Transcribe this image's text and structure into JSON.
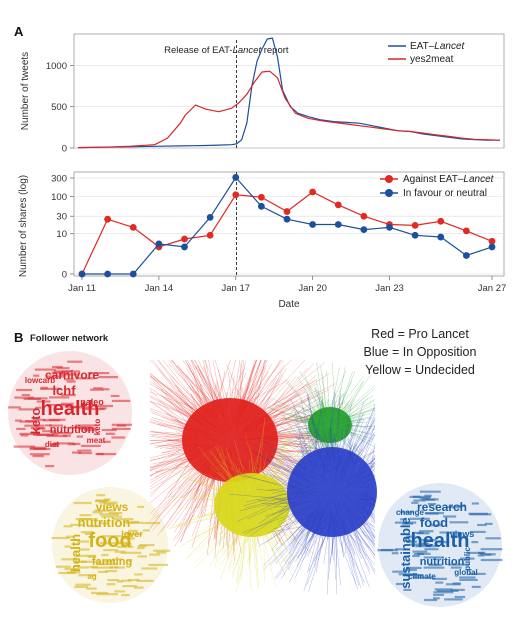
{
  "panel_a": {
    "letter": "A"
  },
  "panel_b": {
    "letter": "B",
    "subtitle": "Follower network",
    "color_key": [
      "Red = Pro Lancet",
      "Blue = In Opposition",
      "Yellow = Undecided"
    ],
    "clusters": [
      {
        "id": "red",
        "color": "#e0201b"
      },
      {
        "id": "green",
        "color": "#22a02a"
      },
      {
        "id": "yellow",
        "color": "#d8d81a"
      },
      {
        "id": "blue",
        "color": "#2a3fc8"
      }
    ],
    "clouds": {
      "red": {
        "color": "#d9262e",
        "words": [
          "health",
          "lchf",
          "carnivore",
          "keto",
          "nutrition",
          "paleo",
          "diet",
          "meat",
          "lowcarb",
          "keto"
        ]
      },
      "yellow": {
        "color": "#d4b317",
        "words": [
          "food",
          "nutrition",
          "views",
          "health",
          "farming",
          "lover",
          "ag"
        ]
      },
      "blue": {
        "color": "#1b5fa8",
        "words": [
          "health",
          "food",
          "research",
          "sustainable",
          "nutrition",
          "views",
          "climate",
          "global",
          "change",
          "public"
        ]
      }
    }
  },
  "chart_data": [
    {
      "type": "line",
      "panel": "A",
      "ylabel": "Number of tweets",
      "ylim": [
        0,
        1380
      ],
      "yticks": [
        0,
        500,
        1000
      ],
      "xlim": [
        0,
        16.5
      ],
      "annotation": {
        "text_pre": "Release of EAT-",
        "text_em": "Lancet",
        "text_post": " report",
        "x": 6.2
      },
      "legend": {
        "position": "top-right"
      },
      "series": [
        {
          "name_pre": "EAT–",
          "name_em": "Lancet",
          "color": "#1f4e9b",
          "x": [
            0,
            1,
            2,
            3,
            4,
            4.5,
            5,
            5.5,
            6,
            6.2,
            6.4,
            6.6,
            6.8,
            7,
            7.2,
            7.4,
            7.6,
            7.8,
            8,
            8.3,
            8.6,
            9,
            9.5,
            10,
            10.5,
            11,
            11.5,
            12,
            12.5,
            13,
            13.5,
            14,
            14.5,
            15,
            15.5,
            16,
            16.5
          ],
          "y": [
            5,
            10,
            15,
            20,
            25,
            28,
            30,
            35,
            40,
            50,
            100,
            300,
            750,
            1050,
            1200,
            1320,
            1330,
            1100,
            700,
            500,
            420,
            380,
            340,
            320,
            310,
            300,
            270,
            240,
            210,
            200,
            170,
            150,
            130,
            110,
            100,
            95,
            95
          ]
        },
        {
          "name": "yes2meat",
          "color": "#d6262b",
          "x": [
            0,
            1,
            2,
            3,
            3.5,
            4,
            4.2,
            4.6,
            5,
            5.5,
            6,
            6.3,
            6.6,
            6.9,
            7.2,
            7.5,
            7.8,
            8.1,
            8.5,
            9,
            9.5,
            10,
            10.5,
            11,
            11.5,
            12,
            12.5,
            13,
            13.5,
            14,
            14.5,
            15,
            15.5,
            16,
            16.5
          ],
          "y": [
            5,
            10,
            20,
            40,
            120,
            300,
            400,
            520,
            470,
            440,
            480,
            550,
            650,
            800,
            920,
            930,
            850,
            600,
            420,
            360,
            330,
            310,
            290,
            270,
            250,
            230,
            210,
            200,
            180,
            160,
            140,
            120,
            105,
            100,
            95
          ]
        }
      ]
    },
    {
      "type": "line",
      "panel": "A2",
      "xlabel": "Date",
      "ylabel": "Number of shares (log)",
      "yscale": "symlog",
      "yticks": [
        0,
        10,
        30,
        100,
        300
      ],
      "xticks": [
        {
          "x": 0,
          "label": "Jan 11"
        },
        {
          "x": 3,
          "label": "Jan 14"
        },
        {
          "x": 6,
          "label": "Jan 17"
        },
        {
          "x": 9,
          "label": "Jan 20"
        },
        {
          "x": 12,
          "label": "Jan 23"
        },
        {
          "x": 16,
          "label": "Jan 27"
        }
      ],
      "legend": {
        "position": "top-right"
      },
      "series": [
        {
          "name_pre": "Against EAT–",
          "name_em": "Lancet",
          "color": "#e02a24",
          "x": [
            0,
            1,
            2,
            3,
            4,
            5,
            6,
            7,
            8,
            9,
            10,
            11,
            12,
            13,
            14,
            15,
            16
          ],
          "y": [
            0,
            25,
            15,
            4,
            7,
            9,
            110,
            95,
            40,
            130,
            60,
            30,
            18,
            17,
            22,
            12,
            6
          ]
        },
        {
          "name": "In favour or neutral",
          "color": "#1c4f9e",
          "x": [
            0,
            1,
            2,
            3,
            4,
            5,
            6,
            7,
            8,
            9,
            10,
            11,
            12,
            13,
            14,
            15,
            16
          ],
          "y": [
            0,
            0,
            0,
            5,
            4,
            28,
            310,
            55,
            25,
            18,
            18,
            13,
            15,
            9,
            8,
            2,
            4
          ]
        }
      ]
    }
  ]
}
